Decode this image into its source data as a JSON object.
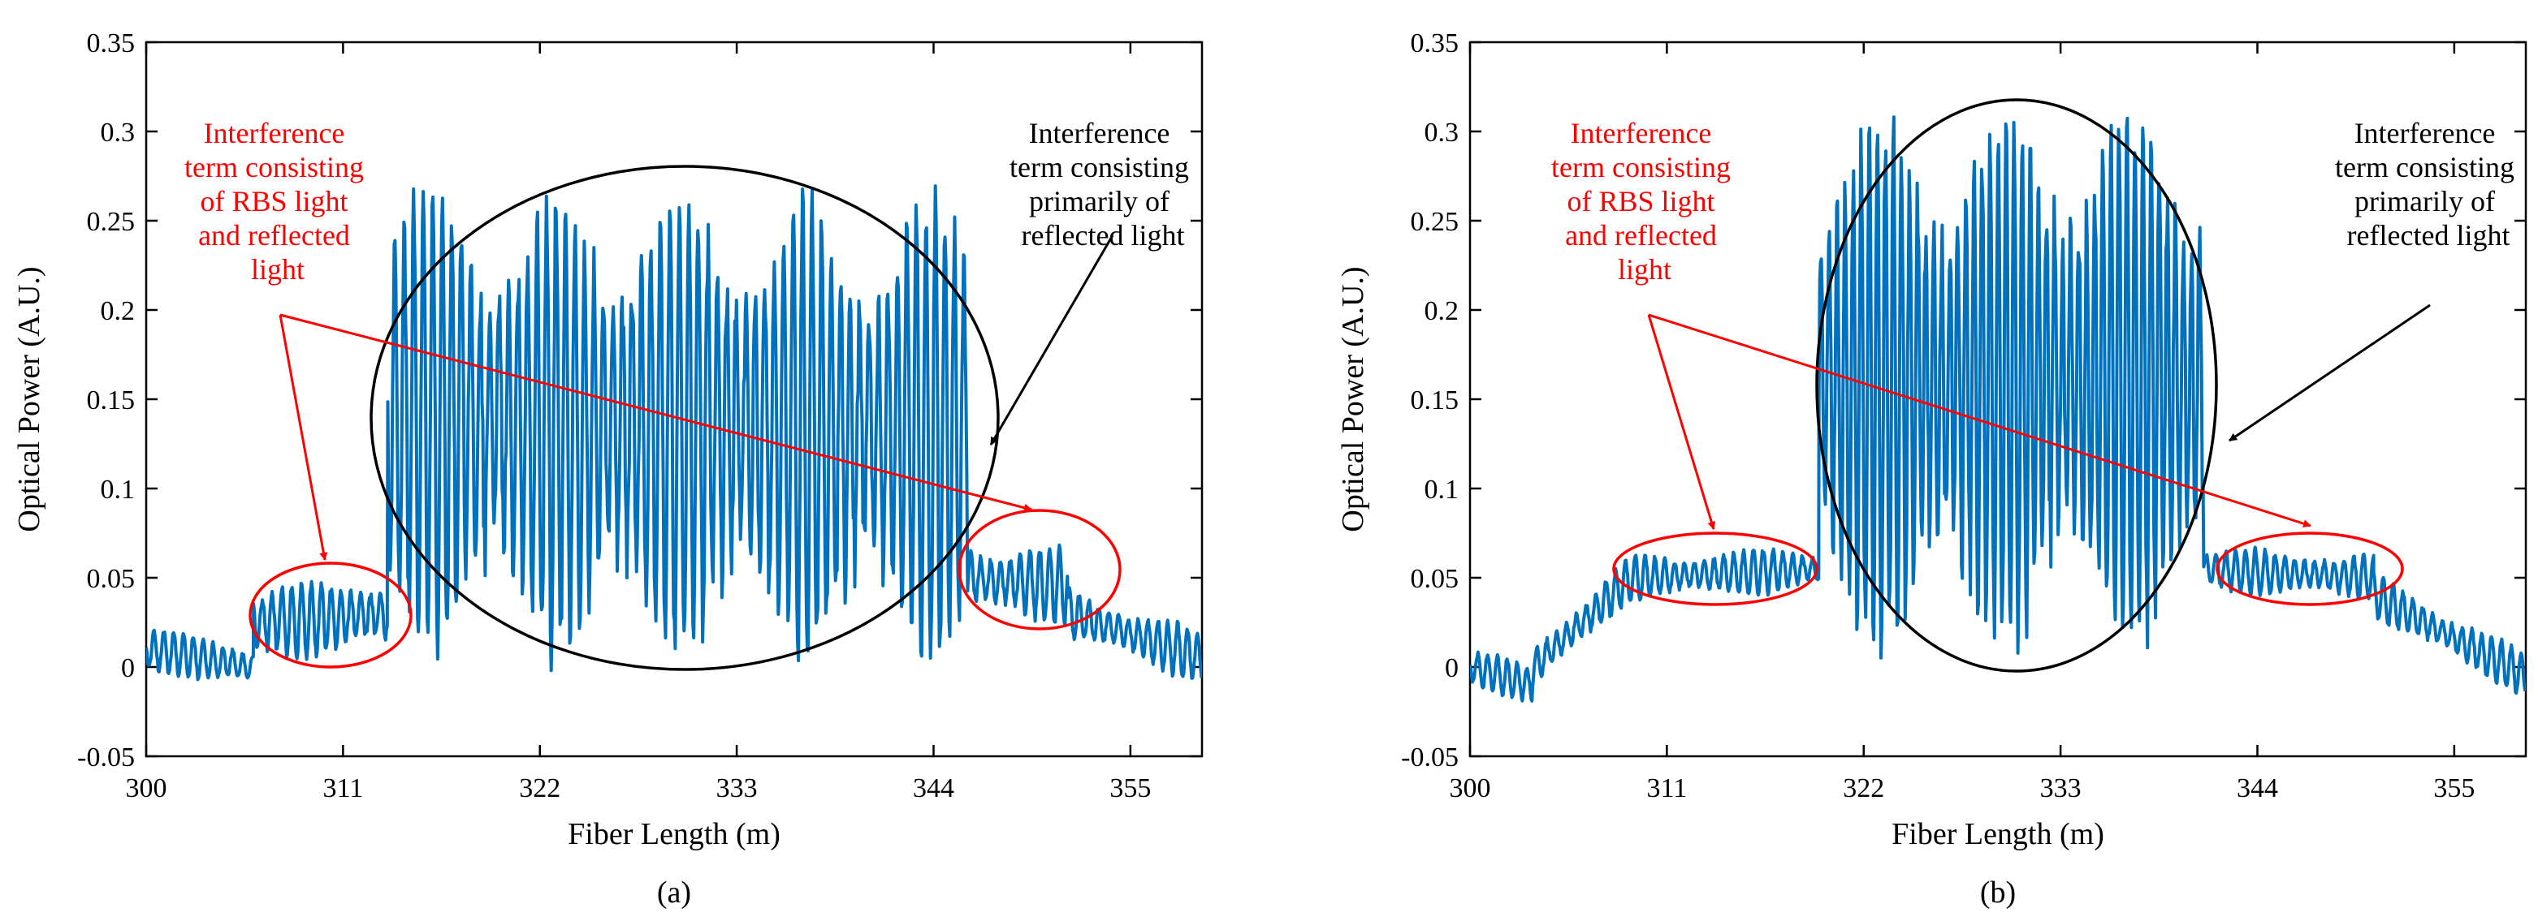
{
  "figure": {
    "panels": [
      "(a)",
      "(b)"
    ]
  },
  "colors": {
    "signal": "#0072BD",
    "annotation_red": "#FF0000",
    "annotation_black": "#000000",
    "axis": "#000000"
  },
  "chart_data": [
    {
      "type": "line",
      "panel_label": "(a)",
      "xlabel": "Fiber Length (m)",
      "ylabel": "Optical Power (A.U.)",
      "xlim": [
        300,
        359
      ],
      "ylim": [
        -0.05,
        0.35
      ],
      "xticks": [
        300,
        311,
        322,
        333,
        344,
        355
      ],
      "yticks": [
        -0.05,
        0,
        0.05,
        0.1,
        0.15,
        0.2,
        0.25,
        0.3,
        0.35
      ],
      "ytick_labels": [
        "-0.05",
        "0",
        "0.05",
        "0.1",
        "0.15",
        "0.2",
        "0.25",
        "0.3",
        "0.35"
      ],
      "series": [
        {
          "name": "Optical power",
          "segments": [
            {
              "x0": 300.0,
              "x1": 306.0,
              "base_start": 0.01,
              "base_end": 0.0,
              "amp": 0.012,
              "period": 0.55
            },
            {
              "x0": 306.0,
              "x1": 313.5,
              "base_start": 0.025,
              "base_end": 0.03,
              "amp": 0.02,
              "period": 0.55
            },
            {
              "x0": 313.5,
              "x1": 345.9,
              "base_start": 0.14,
              "base_end": 0.13,
              "amp": 0.12,
              "period": 0.53
            },
            {
              "x0": 345.9,
              "x1": 351.5,
              "base_start": 0.05,
              "base_end": 0.045,
              "amp": 0.02,
              "period": 0.55
            },
            {
              "x0": 351.5,
              "x1": 359.0,
              "base_start": 0.03,
              "base_end": 0.005,
              "amp": 0.014,
              "period": 0.55
            }
          ]
        }
      ],
      "annotations": [
        {
          "label_lines": [
            "Interference",
            "term consisting",
            "of RBS light",
            "and reflected",
            "light"
          ],
          "color": "red"
        },
        {
          "label_lines": [
            "Interference",
            "term consisting",
            "primarily of",
            "reflected light"
          ],
          "color": "black"
        }
      ],
      "highlight_regions": [
        {
          "kind": "red-ellipse",
          "x_range": [
            306.0,
            315.0
          ],
          "y_range": [
            0.005,
            0.07
          ]
        },
        {
          "kind": "black-ellipse",
          "x_range": [
            313.0,
            347.5
          ],
          "y_range": [
            0.0,
            0.28
          ]
        },
        {
          "kind": "red-ellipse",
          "x_range": [
            346.0,
            355.0
          ],
          "y_range": [
            0.03,
            0.1
          ]
        }
      ]
    },
    {
      "type": "line",
      "panel_label": "(b)",
      "xlabel": "Fiber Length (m)",
      "ylabel": "Optical Power (A.U.)",
      "xlim": [
        300,
        359
      ],
      "ylim": [
        -0.05,
        0.35
      ],
      "xticks": [
        300,
        311,
        322,
        333,
        344,
        355
      ],
      "yticks": [
        -0.05,
        0,
        0.05,
        0.1,
        0.15,
        0.2,
        0.25,
        0.3,
        0.35
      ],
      "ytick_labels": [
        "-0.05",
        "0",
        "0.05",
        "0.1",
        "0.15",
        "0.2",
        "0.25",
        "0.3",
        "0.35"
      ],
      "series": [
        {
          "name": "Optical power",
          "segments": [
            {
              "x0": 300.0,
              "x1": 303.5,
              "base_start": 0.0,
              "base_end": -0.01,
              "amp": 0.01,
              "period": 0.55
            },
            {
              "x0": 303.5,
              "x1": 309.0,
              "base_start": 0.0,
              "base_end": 0.05,
              "amp": 0.012,
              "period": 0.55
            },
            {
              "x0": 309.0,
              "x1": 319.5,
              "base_start": 0.05,
              "base_end": 0.055,
              "amp": 0.012,
              "period": 0.55
            },
            {
              "x0": 319.5,
              "x1": 341.0,
              "base_start": 0.16,
              "base_end": 0.16,
              "amp": 0.14,
              "period": 0.45
            },
            {
              "x0": 341.0,
              "x1": 350.5,
              "base_start": 0.055,
              "base_end": 0.05,
              "amp": 0.012,
              "period": 0.55
            },
            {
              "x0": 350.5,
              "x1": 359.0,
              "base_start": 0.04,
              "base_end": -0.005,
              "amp": 0.012,
              "period": 0.55
            }
          ]
        }
      ],
      "annotations": [
        {
          "label_lines": [
            "Interference",
            "term consisting",
            "of RBS light",
            "and reflected",
            "light"
          ],
          "color": "red"
        },
        {
          "label_lines": [
            "Interference",
            "term consisting",
            "primarily of",
            "reflected light"
          ],
          "color": "black"
        }
      ],
      "highlight_regions": [
        {
          "kind": "red-ellipse",
          "x_range": [
            308.7,
            320.1
          ],
          "y_range": [
            0.035,
            0.075
          ]
        },
        {
          "kind": "black-ellipse",
          "x_range": [
            319.7,
            341.0
          ],
          "y_range": [
            0.0,
            0.32
          ]
        },
        {
          "kind": "red-ellipse",
          "x_range": [
            341.0,
            351.4
          ],
          "y_range": [
            0.035,
            0.075
          ]
        }
      ]
    }
  ]
}
